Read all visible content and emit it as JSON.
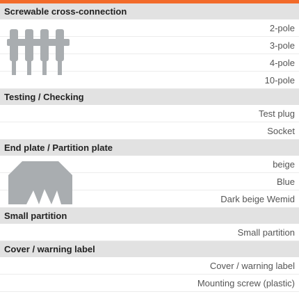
{
  "sections": [
    {
      "title": "Screwable cross-connection",
      "items": [
        "2-pole",
        "3-pole",
        "4-pole",
        "10-pole"
      ]
    },
    {
      "title": "Testing / Checking",
      "items": [
        "Test plug",
        "Socket"
      ]
    },
    {
      "title": "End plate / Partition plate",
      "items": [
        "beige",
        "Blue",
        "Dark beige Wemid"
      ]
    },
    {
      "title": "Small partition",
      "items": [
        "Small partition"
      ]
    },
    {
      "title": "Cover / warning label",
      "items": [
        "Cover / warning label",
        "Mounting screw (plastic)"
      ]
    }
  ]
}
